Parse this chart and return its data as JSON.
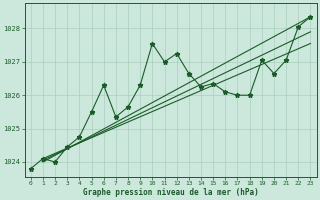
{
  "bg_color": "#cce8dc",
  "grid_color": "#aacfbe",
  "line_color": "#1a5c28",
  "text_color": "#1a5c28",
  "xlabel": "Graphe pression niveau de la mer (hPa)",
  "xlim": [
    -0.5,
    23.5
  ],
  "ylim": [
    1023.55,
    1028.75
  ],
  "yticks": [
    1024,
    1025,
    1026,
    1027,
    1028
  ],
  "xticks": [
    0,
    1,
    2,
    3,
    4,
    5,
    6,
    7,
    8,
    9,
    10,
    11,
    12,
    13,
    14,
    15,
    16,
    17,
    18,
    19,
    20,
    21,
    22,
    23
  ],
  "series1_x": [
    0,
    1,
    2,
    3,
    4,
    5,
    6,
    7,
    8,
    9,
    10,
    11,
    12,
    13
  ],
  "series1_y": [
    1023.8,
    1024.1,
    1024.0,
    1024.45,
    1024.75,
    1025.5,
    1026.3,
    1025.35,
    1025.65,
    1026.3,
    1027.55,
    1027.0,
    1027.25,
    1026.65
  ],
  "series2_x": [
    13,
    14,
    15,
    16,
    17,
    18,
    19,
    20,
    21,
    22,
    23
  ],
  "series2_y": [
    1026.65,
    1026.25,
    1026.35,
    1026.1,
    1026.0,
    1026.0,
    1027.05,
    1026.65,
    1027.05,
    1028.05,
    1028.35
  ],
  "trend1_x": [
    1,
    23
  ],
  "trend1_y": [
    1024.0,
    1028.35
  ],
  "trend2_x": [
    1,
    23
  ],
  "trend2_y": [
    1024.05,
    1027.9
  ],
  "trend3_x": [
    1,
    23
  ],
  "trend3_y": [
    1024.1,
    1027.55
  ],
  "figsize": [
    3.2,
    2.0
  ],
  "dpi": 100
}
